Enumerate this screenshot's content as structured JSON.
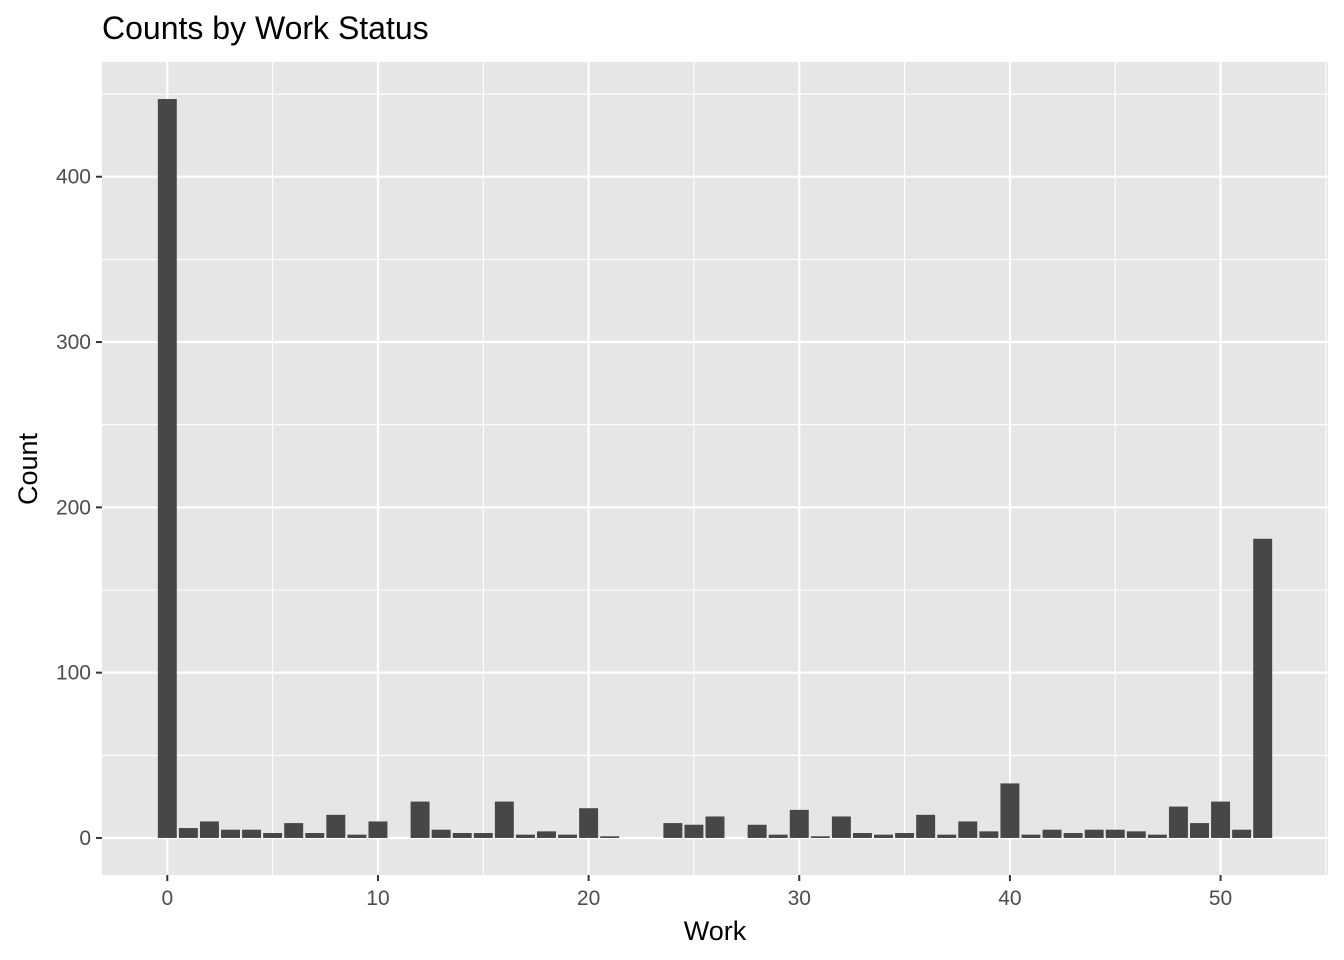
{
  "chart_data": {
    "type": "bar",
    "title": "Counts by Work Status",
    "xlabel": "Work",
    "ylabel": "Count",
    "x": [
      0,
      1,
      2,
      3,
      4,
      5,
      6,
      7,
      8,
      9,
      10,
      12,
      13,
      14,
      15,
      16,
      17,
      18,
      19,
      20,
      21,
      24,
      25,
      26,
      28,
      29,
      30,
      31,
      32,
      33,
      34,
      35,
      36,
      37,
      38,
      39,
      40,
      41,
      42,
      43,
      44,
      45,
      46,
      47,
      48,
      49,
      50,
      51,
      52
    ],
    "values": [
      447,
      6,
      10,
      5,
      5,
      3,
      9,
      3,
      14,
      2,
      10,
      22,
      5,
      3,
      3,
      22,
      2,
      4,
      2,
      18,
      1,
      9,
      8,
      13,
      8,
      2,
      17,
      1,
      13,
      3,
      2,
      3,
      14,
      2,
      10,
      4,
      33,
      2,
      5,
      3,
      5,
      5,
      4,
      2,
      19,
      9,
      22,
      5,
      181
    ],
    "xlim": [
      -3.1,
      55.1
    ],
    "ylim": [
      -22.4,
      469.4
    ],
    "xticks": [
      0,
      10,
      20,
      30,
      40,
      50
    ],
    "yticks": [
      0,
      100,
      200,
      300,
      400
    ],
    "xtick_labels": [
      "0",
      "10",
      "20",
      "30",
      "40",
      "50"
    ],
    "ytick_labels": [
      "0",
      "100",
      "200",
      "300",
      "400"
    ],
    "grid": true,
    "legend": "none",
    "colors": {
      "bar": "#474747",
      "panel": "#e6e6e6",
      "grid": "#ffffff"
    }
  }
}
